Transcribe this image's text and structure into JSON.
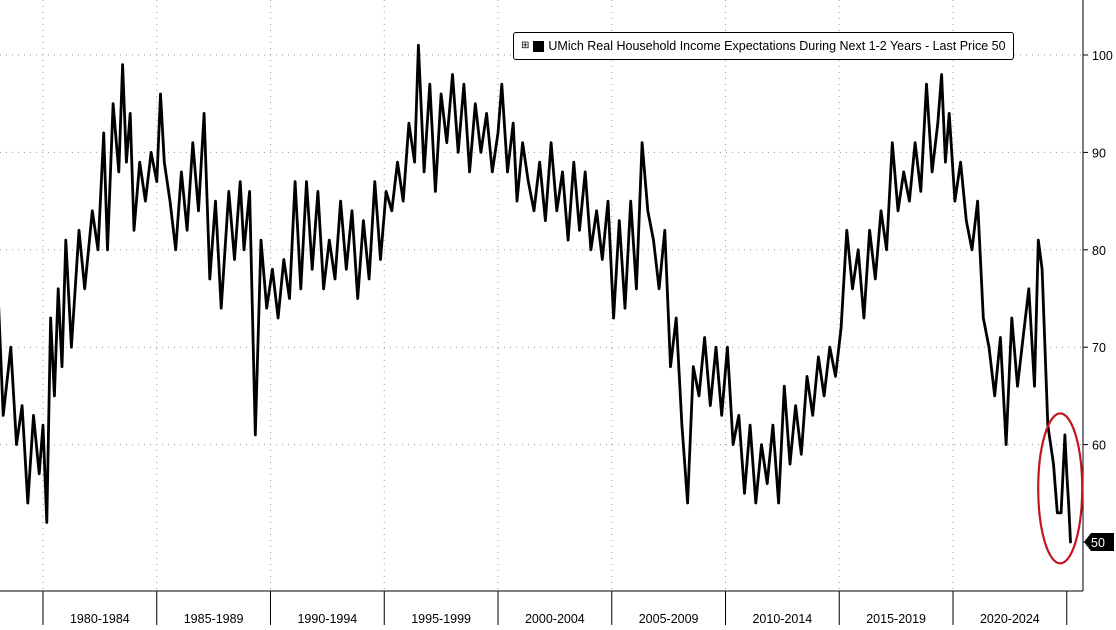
{
  "chart_data": {
    "type": "line",
    "title": "",
    "xlabel": "",
    "ylabel": "",
    "ylim": [
      46.5,
      105
    ],
    "yticks": [
      50,
      60,
      70,
      80,
      90,
      100
    ],
    "ytick_labels": [
      "50",
      "60",
      "70",
      "80",
      "90",
      "100"
    ],
    "x_range": [
      "1978-01",
      "2025-12"
    ],
    "x_period_labels": [
      "1980-1984",
      "1985-1989",
      "1990-1994",
      "1995-1999",
      "2000-2004",
      "2005-2009",
      "2010-2014",
      "2015-2019",
      "2020-2024"
    ],
    "x_period_starts": [
      "1980-01",
      "1985-01",
      "1990-01",
      "1995-01",
      "2000-01",
      "2005-01",
      "2010-01",
      "2015-01",
      "2020-01"
    ],
    "grid": true,
    "legend_position": "top-right",
    "last_value_label": "50",
    "annotation": "red ellipse around latest values",
    "series": [
      {
        "name": "UMich Real Household Income Expectations During Next 1-2 Years - Last Price 50",
        "color": "#000000",
        "points": [
          [
            "1978-01",
            77
          ],
          [
            "1978-04",
            63
          ],
          [
            "1978-08",
            70
          ],
          [
            "1978-11",
            60
          ],
          [
            "1979-02",
            64
          ],
          [
            "1979-05",
            54
          ],
          [
            "1979-08",
            63
          ],
          [
            "1979-11",
            57
          ],
          [
            "1980-01",
            62
          ],
          [
            "1980-03",
            52
          ],
          [
            "1980-05",
            73
          ],
          [
            "1980-07",
            65
          ],
          [
            "1980-09",
            76
          ],
          [
            "1980-11",
            68
          ],
          [
            "1981-01",
            81
          ],
          [
            "1981-04",
            70
          ],
          [
            "1981-08",
            82
          ],
          [
            "1981-11",
            76
          ],
          [
            "1982-03",
            84
          ],
          [
            "1982-06",
            80
          ],
          [
            "1982-09",
            92
          ],
          [
            "1982-11",
            80
          ],
          [
            "1983-02",
            95
          ],
          [
            "1983-05",
            88
          ],
          [
            "1983-07",
            99
          ],
          [
            "1983-09",
            89
          ],
          [
            "1983-11",
            94
          ],
          [
            "1984-01",
            82
          ],
          [
            "1984-04",
            89
          ],
          [
            "1984-07",
            85
          ],
          [
            "1984-10",
            90
          ],
          [
            "1985-01",
            87
          ],
          [
            "1985-03",
            96
          ],
          [
            "1985-05",
            89
          ],
          [
            "1985-08",
            85
          ],
          [
            "1985-11",
            80
          ],
          [
            "1986-02",
            88
          ],
          [
            "1986-05",
            82
          ],
          [
            "1986-08",
            91
          ],
          [
            "1986-11",
            84
          ],
          [
            "1987-02",
            94
          ],
          [
            "1987-05",
            77
          ],
          [
            "1987-08",
            85
          ],
          [
            "1987-11",
            74
          ],
          [
            "1988-03",
            86
          ],
          [
            "1988-06",
            79
          ],
          [
            "1988-09",
            87
          ],
          [
            "1988-11",
            80
          ],
          [
            "1989-02",
            86
          ],
          [
            "1989-05",
            61
          ],
          [
            "1989-08",
            81
          ],
          [
            "1989-11",
            74
          ],
          [
            "1990-02",
            78
          ],
          [
            "1990-05",
            73
          ],
          [
            "1990-08",
            79
          ],
          [
            "1990-11",
            75
          ],
          [
            "1991-02",
            87
          ],
          [
            "1991-05",
            76
          ],
          [
            "1991-08",
            87
          ],
          [
            "1991-11",
            78
          ],
          [
            "1992-02",
            86
          ],
          [
            "1992-05",
            76
          ],
          [
            "1992-08",
            81
          ],
          [
            "1992-11",
            77
          ],
          [
            "1993-02",
            85
          ],
          [
            "1993-05",
            78
          ],
          [
            "1993-08",
            84
          ],
          [
            "1993-11",
            75
          ],
          [
            "1994-02",
            83
          ],
          [
            "1994-05",
            77
          ],
          [
            "1994-08",
            87
          ],
          [
            "1994-11",
            79
          ],
          [
            "1995-02",
            86
          ],
          [
            "1995-05",
            84
          ],
          [
            "1995-08",
            89
          ],
          [
            "1995-11",
            85
          ],
          [
            "1996-02",
            93
          ],
          [
            "1996-05",
            89
          ],
          [
            "1996-07",
            101
          ],
          [
            "1996-10",
            88
          ],
          [
            "1997-01",
            97
          ],
          [
            "1997-04",
            86
          ],
          [
            "1997-07",
            96
          ],
          [
            "1997-10",
            91
          ],
          [
            "1998-01",
            98
          ],
          [
            "1998-04",
            90
          ],
          [
            "1998-07",
            97
          ],
          [
            "1998-10",
            88
          ],
          [
            "1999-01",
            95
          ],
          [
            "1999-04",
            90
          ],
          [
            "1999-07",
            94
          ],
          [
            "1999-10",
            88
          ],
          [
            "2000-01",
            92
          ],
          [
            "2000-03",
            97
          ],
          [
            "2000-06",
            88
          ],
          [
            "2000-09",
            93
          ],
          [
            "2000-11",
            85
          ],
          [
            "2001-02",
            91
          ],
          [
            "2001-05",
            87
          ],
          [
            "2001-08",
            84
          ],
          [
            "2001-11",
            89
          ],
          [
            "2002-02",
            83
          ],
          [
            "2002-05",
            91
          ],
          [
            "2002-08",
            84
          ],
          [
            "2002-11",
            88
          ],
          [
            "2003-02",
            81
          ],
          [
            "2003-05",
            89
          ],
          [
            "2003-08",
            82
          ],
          [
            "2003-11",
            88
          ],
          [
            "2004-02",
            80
          ],
          [
            "2004-05",
            84
          ],
          [
            "2004-08",
            79
          ],
          [
            "2004-11",
            85
          ],
          [
            "2005-02",
            73
          ],
          [
            "2005-05",
            83
          ],
          [
            "2005-08",
            74
          ],
          [
            "2005-11",
            85
          ],
          [
            "2006-02",
            76
          ],
          [
            "2006-05",
            91
          ],
          [
            "2006-08",
            84
          ],
          [
            "2006-11",
            81
          ],
          [
            "2007-02",
            76
          ],
          [
            "2007-05",
            82
          ],
          [
            "2007-08",
            68
          ],
          [
            "2007-11",
            73
          ],
          [
            "2008-02",
            62
          ],
          [
            "2008-05",
            54
          ],
          [
            "2008-08",
            68
          ],
          [
            "2008-11",
            65
          ],
          [
            "2009-02",
            71
          ],
          [
            "2009-05",
            64
          ],
          [
            "2009-08",
            70
          ],
          [
            "2009-11",
            63
          ],
          [
            "2010-02",
            70
          ],
          [
            "2010-05",
            60
          ],
          [
            "2010-08",
            63
          ],
          [
            "2010-11",
            55
          ],
          [
            "2011-02",
            62
          ],
          [
            "2011-05",
            54
          ],
          [
            "2011-08",
            60
          ],
          [
            "2011-11",
            56
          ],
          [
            "2012-02",
            62
          ],
          [
            "2012-05",
            54
          ],
          [
            "2012-08",
            66
          ],
          [
            "2012-11",
            58
          ],
          [
            "2013-02",
            64
          ],
          [
            "2013-05",
            59
          ],
          [
            "2013-08",
            67
          ],
          [
            "2013-11",
            63
          ],
          [
            "2014-02",
            69
          ],
          [
            "2014-05",
            65
          ],
          [
            "2014-08",
            70
          ],
          [
            "2014-11",
            67
          ],
          [
            "2015-02",
            72
          ],
          [
            "2015-05",
            82
          ],
          [
            "2015-08",
            76
          ],
          [
            "2015-11",
            80
          ],
          [
            "2016-02",
            73
          ],
          [
            "2016-05",
            82
          ],
          [
            "2016-08",
            77
          ],
          [
            "2016-11",
            84
          ],
          [
            "2017-02",
            80
          ],
          [
            "2017-05",
            91
          ],
          [
            "2017-08",
            84
          ],
          [
            "2017-11",
            88
          ],
          [
            "2018-02",
            85
          ],
          [
            "2018-05",
            91
          ],
          [
            "2018-08",
            86
          ],
          [
            "2018-11",
            97
          ],
          [
            "2019-02",
            88
          ],
          [
            "2019-05",
            93
          ],
          [
            "2019-07",
            98
          ],
          [
            "2019-09",
            89
          ],
          [
            "2019-11",
            94
          ],
          [
            "2020-02",
            85
          ],
          [
            "2020-05",
            89
          ],
          [
            "2020-08",
            83
          ],
          [
            "2020-11",
            80
          ],
          [
            "2021-02",
            85
          ],
          [
            "2021-05",
            73
          ],
          [
            "2021-08",
            70
          ],
          [
            "2021-11",
            65
          ],
          [
            "2022-02",
            71
          ],
          [
            "2022-05",
            60
          ],
          [
            "2022-08",
            73
          ],
          [
            "2022-11",
            66
          ],
          [
            "2023-02",
            71
          ],
          [
            "2023-05",
            76
          ],
          [
            "2023-08",
            66
          ],
          [
            "2023-10",
            81
          ],
          [
            "2023-12",
            78
          ],
          [
            "2024-03",
            62
          ],
          [
            "2024-06",
            58
          ],
          [
            "2024-08",
            53
          ],
          [
            "2024-10",
            53
          ],
          [
            "2024-12",
            61
          ],
          [
            "2025-01",
            57
          ],
          [
            "2025-02",
            54
          ],
          [
            "2025-03",
            50
          ]
        ]
      }
    ]
  },
  "legend": {
    "expand_glyph": "⊞",
    "label": "UMich Real Household Income Expectations During Next 1-2 Years - Last Price 50"
  }
}
